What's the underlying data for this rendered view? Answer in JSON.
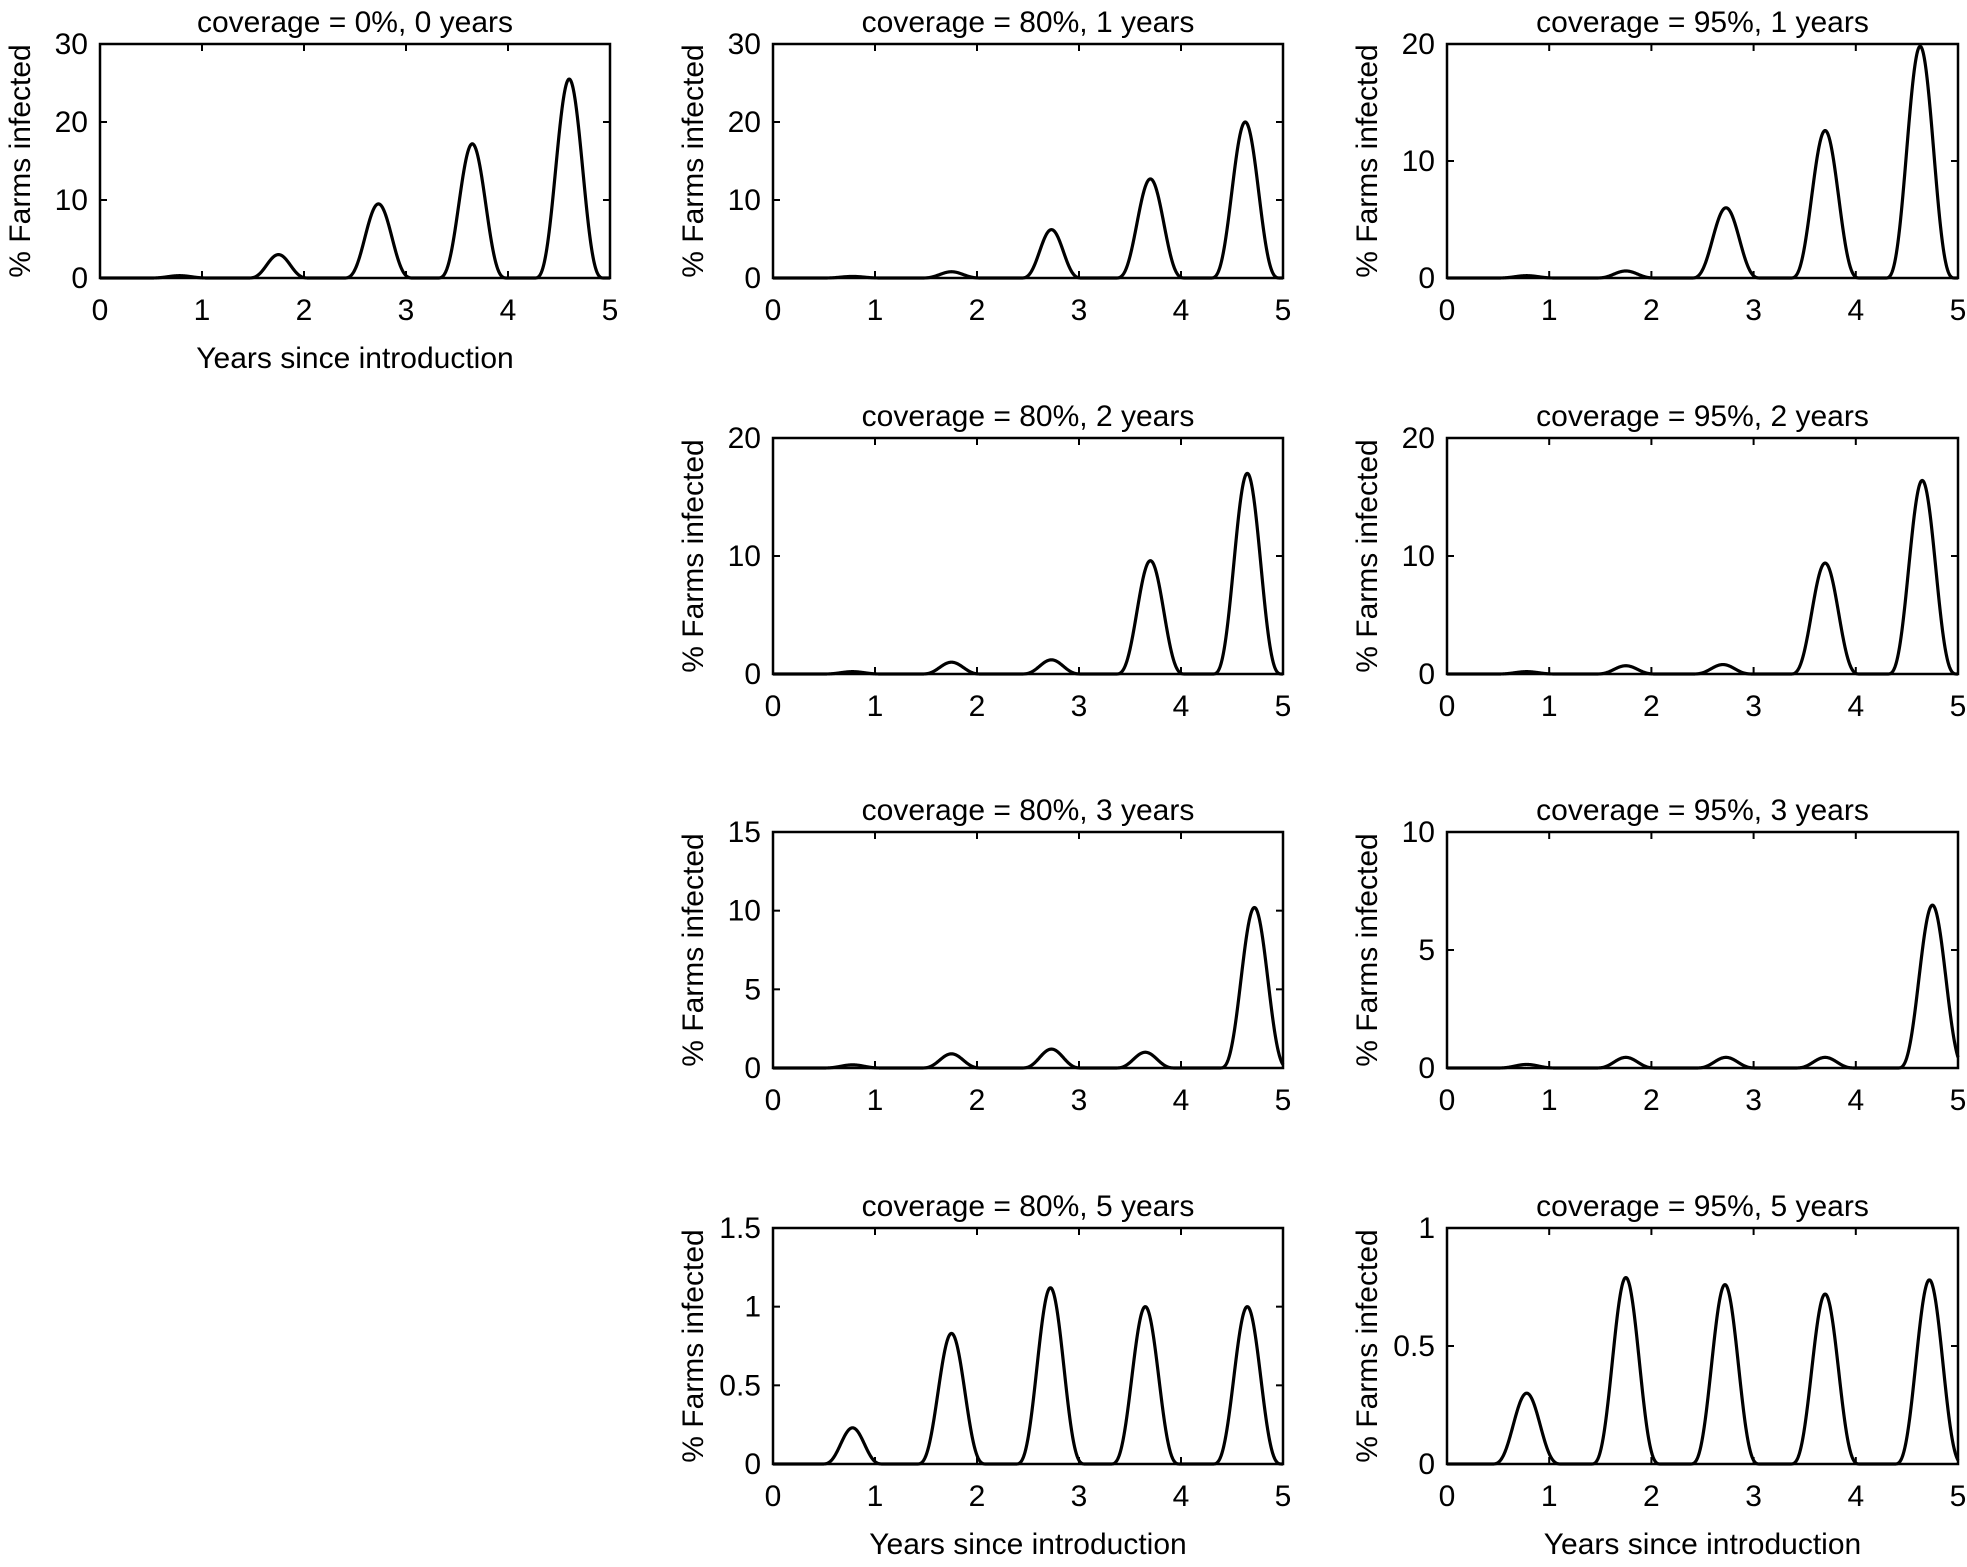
{
  "chart_data": [
    {
      "type": "line",
      "title": "coverage = 0%, 0 years",
      "xlabel": "Years since introduction",
      "ylabel": "% Farms infected",
      "xlim": [
        0,
        5
      ],
      "ylim": [
        0,
        30
      ],
      "xticks": [
        "0",
        "1",
        "2",
        "3",
        "4",
        "5"
      ],
      "yticks": [
        "0",
        "10",
        "20",
        "30"
      ],
      "grid": false,
      "peaks": [
        {
          "x": 0.78,
          "y": 0.3
        },
        {
          "x": 1.75,
          "y": 3
        },
        {
          "x": 2.73,
          "y": 9.5
        },
        {
          "x": 3.65,
          "y": 17.2
        },
        {
          "x": 4.6,
          "y": 25.5
        }
      ]
    },
    {
      "type": "line",
      "title": "coverage = 80%, 1 years",
      "xlabel": "",
      "ylabel": "% Farms infected",
      "xlim": [
        0,
        5
      ],
      "ylim": [
        0,
        30
      ],
      "xticks": [
        "0",
        "1",
        "2",
        "3",
        "4",
        "5"
      ],
      "yticks": [
        "0",
        "10",
        "20",
        "30"
      ],
      "grid": false,
      "peaks": [
        {
          "x": 0.78,
          "y": 0.2
        },
        {
          "x": 1.75,
          "y": 0.8
        },
        {
          "x": 2.73,
          "y": 6.2
        },
        {
          "x": 3.7,
          "y": 12.7
        },
        {
          "x": 4.63,
          "y": 20
        }
      ]
    },
    {
      "type": "line",
      "title": "coverage = 95%, 1 years",
      "xlabel": "",
      "ylabel": "% Farms infected",
      "xlim": [
        0,
        5
      ],
      "ylim": [
        0,
        20
      ],
      "xticks": [
        "0",
        "1",
        "2",
        "3",
        "4",
        "5"
      ],
      "yticks": [
        "0",
        "10",
        "20"
      ],
      "grid": false,
      "peaks": [
        {
          "x": 0.78,
          "y": 0.2
        },
        {
          "x": 1.75,
          "y": 0.6
        },
        {
          "x": 2.73,
          "y": 6
        },
        {
          "x": 3.7,
          "y": 12.6
        },
        {
          "x": 4.63,
          "y": 19.8
        }
      ]
    },
    {
      "type": "line",
      "title": "coverage = 80%, 2 years",
      "xlabel": "",
      "ylabel": "% Farms infected",
      "xlim": [
        0,
        5
      ],
      "ylim": [
        0,
        20
      ],
      "xticks": [
        "0",
        "1",
        "2",
        "3",
        "4",
        "5"
      ],
      "yticks": [
        "0",
        "10",
        "20"
      ],
      "grid": false,
      "peaks": [
        {
          "x": 0.78,
          "y": 0.2
        },
        {
          "x": 1.75,
          "y": 1
        },
        {
          "x": 2.73,
          "y": 1.2
        },
        {
          "x": 3.7,
          "y": 9.6
        },
        {
          "x": 4.65,
          "y": 17
        }
      ]
    },
    {
      "type": "line",
      "title": "coverage = 95%, 2 years",
      "xlabel": "",
      "ylabel": "% Farms infected",
      "xlim": [
        0,
        5
      ],
      "ylim": [
        0,
        20
      ],
      "xticks": [
        "0",
        "1",
        "2",
        "3",
        "4",
        "5"
      ],
      "yticks": [
        "0",
        "10",
        "20"
      ],
      "grid": false,
      "peaks": [
        {
          "x": 0.78,
          "y": 0.2
        },
        {
          "x": 1.75,
          "y": 0.7
        },
        {
          "x": 2.7,
          "y": 0.8
        },
        {
          "x": 3.7,
          "y": 9.4
        },
        {
          "x": 4.65,
          "y": 16.4
        }
      ]
    },
    {
      "type": "line",
      "title": "coverage = 80%, 3 years",
      "xlabel": "",
      "ylabel": "% Farms infected",
      "xlim": [
        0,
        5
      ],
      "ylim": [
        0,
        15
      ],
      "xticks": [
        "0",
        "1",
        "2",
        "3",
        "4",
        "5"
      ],
      "yticks": [
        "0",
        "5",
        "10",
        "15"
      ],
      "grid": false,
      "peaks": [
        {
          "x": 0.78,
          "y": 0.2
        },
        {
          "x": 1.75,
          "y": 0.9
        },
        {
          "x": 2.73,
          "y": 1.2
        },
        {
          "x": 3.65,
          "y": 1
        },
        {
          "x": 4.72,
          "y": 10.2
        }
      ]
    },
    {
      "type": "line",
      "title": "coverage = 95%, 3 years",
      "xlabel": "",
      "ylabel": "% Farms infected",
      "xlim": [
        0,
        5
      ],
      "ylim": [
        0,
        10
      ],
      "xticks": [
        "0",
        "1",
        "2",
        "3",
        "4",
        "5"
      ],
      "yticks": [
        "0",
        "5",
        "10"
      ],
      "grid": false,
      "peaks": [
        {
          "x": 0.78,
          "y": 0.15
        },
        {
          "x": 1.75,
          "y": 0.45
        },
        {
          "x": 2.73,
          "y": 0.45
        },
        {
          "x": 3.7,
          "y": 0.45
        },
        {
          "x": 4.75,
          "y": 6.9
        }
      ]
    },
    {
      "type": "line",
      "title": "coverage = 80%, 5 years",
      "xlabel": "Years since introduction",
      "ylabel": "% Farms infected",
      "xlim": [
        0,
        5
      ],
      "ylim": [
        0,
        1.5
      ],
      "xticks": [
        "0",
        "1",
        "2",
        "3",
        "4",
        "5"
      ],
      "yticks": [
        "0",
        "0.5",
        "1",
        "1.5"
      ],
      "grid": false,
      "peaks": [
        {
          "x": 0.78,
          "y": 0.23
        },
        {
          "x": 1.75,
          "y": 0.83
        },
        {
          "x": 2.72,
          "y": 1.12
        },
        {
          "x": 3.65,
          "y": 1
        },
        {
          "x": 4.65,
          "y": 1
        }
      ]
    },
    {
      "type": "line",
      "title": "coverage = 95%, 5 years",
      "xlabel": "Years since introduction",
      "ylabel": "% Farms infected",
      "xlim": [
        0,
        5
      ],
      "ylim": [
        0,
        1
      ],
      "xticks": [
        "0",
        "1",
        "2",
        "3",
        "4",
        "5"
      ],
      "yticks": [
        "0",
        "0.5",
        "1"
      ],
      "grid": false,
      "peaks": [
        {
          "x": 0.78,
          "y": 0.3
        },
        {
          "x": 1.75,
          "y": 0.79
        },
        {
          "x": 2.72,
          "y": 0.76
        },
        {
          "x": 3.7,
          "y": 0.72
        },
        {
          "x": 4.72,
          "y": 0.78
        }
      ]
    }
  ]
}
